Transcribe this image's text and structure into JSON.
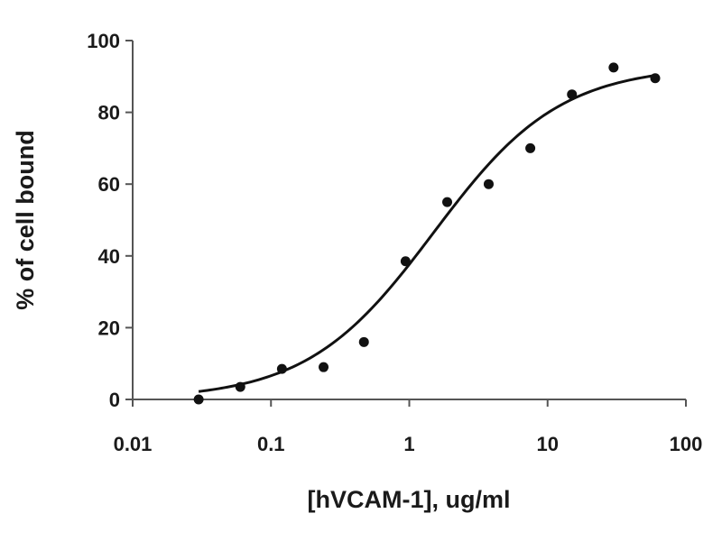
{
  "chart_data": {
    "type": "scatter",
    "title": "",
    "xlabel": "[hVCAM-1], ug/ml",
    "ylabel": "% of cell bound",
    "x_scale": "log",
    "xlim": [
      0.01,
      100
    ],
    "ylim": [
      0,
      100
    ],
    "x_ticks": [
      "0.01",
      "0.1",
      "1",
      "10",
      "100"
    ],
    "y_ticks": [
      "0",
      "20",
      "40",
      "60",
      "80",
      "100"
    ],
    "grid": false,
    "legend": "none",
    "colors": {
      "points": "#111111",
      "curve": "#111111",
      "axis": "#555555"
    },
    "series": [
      {
        "x": [
          0.03,
          0.06,
          0.12,
          0.24,
          0.47,
          0.94,
          1.88,
          3.75,
          7.5,
          15,
          30,
          60
        ],
        "y": [
          0,
          3.5,
          8.5,
          9,
          16,
          38.5,
          55,
          60,
          70,
          85,
          92.5,
          89.5
        ]
      }
    ],
    "fit_curve": {
      "type": "four-parameter logistic",
      "bottom": 0,
      "top": 93,
      "ec50": 1.5,
      "hill": 0.95,
      "x_range": [
        0.03,
        60
      ]
    }
  }
}
